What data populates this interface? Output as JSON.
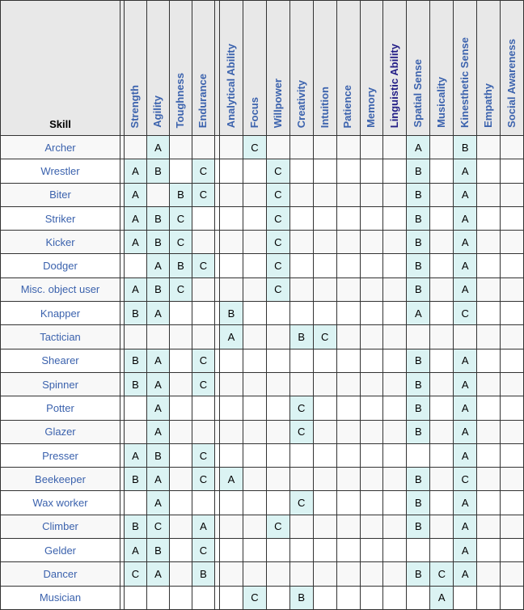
{
  "table": {
    "skill_header": "Skill",
    "columns": [
      {
        "label": "Strength",
        "group": "physical",
        "visited": false
      },
      {
        "label": "Agility",
        "group": "physical",
        "visited": false
      },
      {
        "label": "Toughness",
        "group": "physical",
        "visited": false
      },
      {
        "label": "Endurance",
        "group": "physical",
        "visited": false
      },
      {
        "label": "Analytical Ability",
        "group": "mental",
        "visited": false
      },
      {
        "label": "Focus",
        "group": "mental",
        "visited": false
      },
      {
        "label": "Willpower",
        "group": "mental",
        "visited": false
      },
      {
        "label": "Creativity",
        "group": "mental",
        "visited": false
      },
      {
        "label": "Intuition",
        "group": "mental",
        "visited": false
      },
      {
        "label": "Patience",
        "group": "mental",
        "visited": false
      },
      {
        "label": "Memory",
        "group": "mental",
        "visited": false
      },
      {
        "label": "Linguistic Ability",
        "group": "mental",
        "visited": true
      },
      {
        "label": "Spatial Sense",
        "group": "mental",
        "visited": false
      },
      {
        "label": "Musicality",
        "group": "mental",
        "visited": false
      },
      {
        "label": "Kinesthetic Sense",
        "group": "mental",
        "visited": false
      },
      {
        "label": "Empathy",
        "group": "mental",
        "visited": false
      },
      {
        "label": "Social Awareness",
        "group": "mental",
        "visited": false
      }
    ],
    "rows": [
      {
        "skill": "Archer",
        "cells": [
          "",
          "A",
          "",
          "",
          "",
          "C",
          "",
          "",
          "",
          "",
          "",
          "",
          "A",
          "",
          "B",
          "",
          ""
        ]
      },
      {
        "skill": "Wrestler",
        "cells": [
          "A",
          "B",
          "",
          "C",
          "",
          "",
          "C",
          "",
          "",
          "",
          "",
          "",
          "B",
          "",
          "A",
          "",
          ""
        ]
      },
      {
        "skill": "Biter",
        "cells": [
          "A",
          "",
          "B",
          "C",
          "",
          "",
          "C",
          "",
          "",
          "",
          "",
          "",
          "B",
          "",
          "A",
          "",
          ""
        ]
      },
      {
        "skill": "Striker",
        "cells": [
          "A",
          "B",
          "C",
          "",
          "",
          "",
          "C",
          "",
          "",
          "",
          "",
          "",
          "B",
          "",
          "A",
          "",
          ""
        ]
      },
      {
        "skill": "Kicker",
        "cells": [
          "A",
          "B",
          "C",
          "",
          "",
          "",
          "C",
          "",
          "",
          "",
          "",
          "",
          "B",
          "",
          "A",
          "",
          ""
        ]
      },
      {
        "skill": "Dodger",
        "cells": [
          "",
          "A",
          "B",
          "C",
          "",
          "",
          "C",
          "",
          "",
          "",
          "",
          "",
          "B",
          "",
          "A",
          "",
          ""
        ]
      },
      {
        "skill": "Misc. object user",
        "cells": [
          "A",
          "B",
          "C",
          "",
          "",
          "",
          "C",
          "",
          "",
          "",
          "",
          "",
          "B",
          "",
          "A",
          "",
          ""
        ]
      },
      {
        "skill": "Knapper",
        "cells": [
          "B",
          "A",
          "",
          "",
          "B",
          "",
          "",
          "",
          "",
          "",
          "",
          "",
          "A",
          "",
          "C",
          "",
          ""
        ]
      },
      {
        "skill": "Tactician",
        "cells": [
          "",
          "",
          "",
          "",
          "A",
          "",
          "",
          "B",
          "C",
          "",
          "",
          "",
          "",
          "",
          "",
          "",
          ""
        ]
      },
      {
        "skill": "Shearer",
        "cells": [
          "B",
          "A",
          "",
          "C",
          "",
          "",
          "",
          "",
          "",
          "",
          "",
          "",
          "B",
          "",
          "A",
          "",
          ""
        ]
      },
      {
        "skill": "Spinner",
        "cells": [
          "B",
          "A",
          "",
          "C",
          "",
          "",
          "",
          "",
          "",
          "",
          "",
          "",
          "B",
          "",
          "A",
          "",
          ""
        ]
      },
      {
        "skill": "Potter",
        "cells": [
          "",
          "A",
          "",
          "",
          "",
          "",
          "",
          "C",
          "",
          "",
          "",
          "",
          "B",
          "",
          "A",
          "",
          ""
        ]
      },
      {
        "skill": "Glazer",
        "cells": [
          "",
          "A",
          "",
          "",
          "",
          "",
          "",
          "C",
          "",
          "",
          "",
          "",
          "B",
          "",
          "A",
          "",
          ""
        ]
      },
      {
        "skill": "Presser",
        "cells": [
          "A",
          "B",
          "",
          "C",
          "",
          "",
          "",
          "",
          "",
          "",
          "",
          "",
          "",
          "",
          "A",
          "",
          ""
        ]
      },
      {
        "skill": "Beekeeper",
        "cells": [
          "B",
          "A",
          "",
          "C",
          "A",
          "",
          "",
          "",
          "",
          "",
          "",
          "",
          "B",
          "",
          "C",
          "",
          ""
        ]
      },
      {
        "skill": "Wax worker",
        "cells": [
          "",
          "A",
          "",
          "",
          "",
          "",
          "",
          "C",
          "",
          "",
          "",
          "",
          "B",
          "",
          "A",
          "",
          ""
        ]
      },
      {
        "skill": "Climber",
        "cells": [
          "B",
          "C",
          "",
          "A",
          "",
          "",
          "C",
          "",
          "",
          "",
          "",
          "",
          "B",
          "",
          "A",
          "",
          ""
        ]
      },
      {
        "skill": "Gelder",
        "cells": [
          "A",
          "B",
          "",
          "C",
          "",
          "",
          "",
          "",
          "",
          "",
          "",
          "",
          "",
          "",
          "A",
          "",
          ""
        ]
      },
      {
        "skill": "Dancer",
        "cells": [
          "C",
          "A",
          "",
          "B",
          "",
          "",
          "",
          "",
          "",
          "",
          "",
          "",
          "B",
          "C",
          "A",
          "",
          ""
        ]
      },
      {
        "skill": "Musician",
        "cells": [
          "",
          "",
          "",
          "",
          "",
          "C",
          "",
          "B",
          "",
          "",
          "",
          "",
          "",
          "A",
          "",
          "",
          ""
        ]
      }
    ]
  },
  "colors": {
    "header_bg": "#e8e8e8",
    "row_odd_bg": "#f8f8f8",
    "row_even_bg": "#ffffff",
    "highlight_bg": "#dbf3f3",
    "border": "#333333",
    "link": "#3b62ad",
    "visited_link": "#221d86",
    "text": "#000000"
  }
}
